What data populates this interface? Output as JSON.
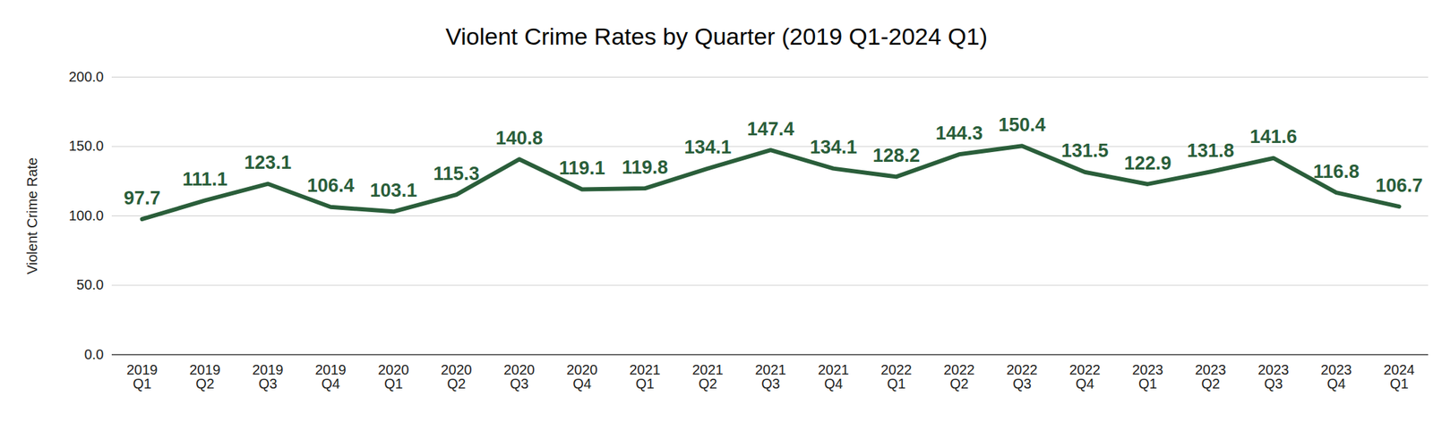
{
  "chart_data": {
    "type": "line",
    "title": "Violent Crime Rates by Quarter (2019 Q1-2024 Q1)",
    "y_label": "Violent Crime Rate",
    "categories": [
      "2019 Q1",
      "2019 Q2",
      "2019 Q3",
      "2019 Q4",
      "2020 Q1",
      "2020 Q2",
      "2020 Q3",
      "2020 Q4",
      "2021 Q1",
      "2021 Q2",
      "2021 Q3",
      "2021 Q4",
      "2022 Q1",
      "2022 Q2",
      "2022 Q3",
      "2022 Q4",
      "2023 Q1",
      "2023 Q2",
      "2023 Q3",
      "2023 Q4",
      "2024 Q1"
    ],
    "values": [
      97.7,
      111.1,
      123.1,
      106.4,
      103.1,
      115.3,
      140.8,
      119.1,
      119.8,
      134.1,
      147.4,
      134.1,
      128.2,
      144.3,
      150.4,
      131.5,
      122.9,
      131.8,
      141.6,
      116.8,
      106.7
    ],
    "color": "#2a5e3a",
    "ylim": [
      0,
      200
    ],
    "yticks": [
      {
        "value": 0,
        "label": "0.0"
      },
      {
        "value": 50,
        "label": "50.0"
      },
      {
        "value": 100,
        "label": "100.0"
      },
      {
        "value": 150,
        "label": "150.0"
      },
      {
        "value": 200,
        "label": "200.0"
      }
    ],
    "grid": true,
    "data_labels": true
  }
}
